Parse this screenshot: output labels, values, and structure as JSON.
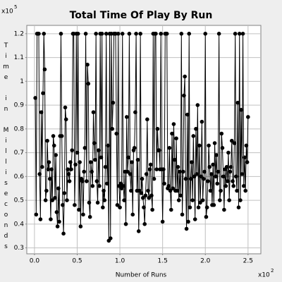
{
  "chart_data": {
    "type": "line",
    "title": "Total Time Of Play By Run",
    "xlabel": "Number of Runs",
    "ylabel": "Time in Milliseconds",
    "x_multiplier": "x10",
    "x_exponent": "2",
    "y_multiplier": "x10",
    "y_exponent": "5",
    "xlim": [
      -9,
      265
    ],
    "xticks": [
      {
        "value": 0,
        "label": "0.0"
      },
      {
        "value": 50,
        "label": "0.5"
      },
      {
        "value": 100,
        "label": "1.0"
      },
      {
        "value": 150,
        "label": "1.5"
      },
      {
        "value": 200,
        "label": "2.0"
      },
      {
        "value": 250,
        "label": "2.5"
      }
    ],
    "ylim": [
      0.275,
      1.235
    ],
    "yticks": [
      0.3,
      0.4,
      0.5,
      0.6,
      0.7,
      0.8,
      0.9,
      1.0,
      1.1,
      1.2
    ],
    "grid": true,
    "x": [
      1,
      2,
      3,
      4,
      5,
      6,
      7,
      8,
      9,
      10,
      11,
      12,
      13,
      14,
      15,
      16,
      17,
      18,
      19,
      20,
      21,
      22,
      23,
      24,
      25,
      26,
      27,
      28,
      29,
      30,
      31,
      32,
      33,
      34,
      35,
      36,
      37,
      38,
      39,
      40,
      41,
      42,
      43,
      44,
      45,
      46,
      47,
      48,
      49,
      50,
      51,
      52,
      53,
      54,
      55,
      56,
      57,
      58,
      59,
      60,
      61,
      62,
      63,
      64,
      65,
      66,
      67,
      68,
      69,
      70,
      71,
      72,
      73,
      74,
      75,
      76,
      77,
      78,
      79,
      80,
      81,
      82,
      83,
      84,
      85,
      86,
      87,
      88,
      89,
      90,
      91,
      92,
      93,
      94,
      95,
      96,
      97,
      98,
      99,
      100,
      101,
      102,
      103,
      104,
      105,
      106,
      107,
      108,
      109,
      110,
      111,
      112,
      113,
      114,
      115,
      116,
      117,
      118,
      119,
      120,
      121,
      122,
      123,
      124,
      125,
      126,
      127,
      128,
      129,
      130,
      131,
      132,
      133,
      134,
      135,
      136,
      137,
      138,
      139,
      140,
      141,
      142,
      143,
      144,
      145,
      146,
      147,
      148,
      149,
      150,
      151,
      152,
      153,
      154,
      155,
      156,
      157,
      158,
      159,
      160,
      161,
      162,
      163,
      164,
      165,
      166,
      167,
      168,
      169,
      170,
      171,
      172,
      173,
      174,
      175,
      176,
      177,
      178,
      179,
      180,
      181,
      182,
      183,
      184,
      185,
      186,
      187,
      188,
      189,
      190,
      191,
      192,
      193,
      194,
      195,
      196,
      197,
      198,
      199,
      200,
      201,
      202,
      203,
      204,
      205,
      206,
      207,
      208,
      209,
      210,
      211,
      212,
      213,
      214,
      215,
      216,
      217,
      218,
      219,
      220,
      221,
      222,
      223,
      224,
      225,
      226,
      227,
      228,
      229,
      230,
      231,
      232,
      233,
      234,
      235,
      236,
      237,
      238,
      239,
      240,
      241,
      242,
      243,
      244,
      245,
      246,
      247,
      248,
      249,
      250
    ],
    "series": [
      {
        "color": "#000000",
        "values": [
          0.93,
          0.44,
          1.2,
          1.2,
          1.2,
          0.61,
          0.42,
          0.87,
          0.64,
          0.95,
          1.2,
          1.05,
          0.5,
          0.54,
          0.75,
          0.63,
          0.66,
          0.59,
          0.42,
          0.63,
          0.5,
          0.77,
          0.73,
          0.51,
          0.69,
          0.45,
          0.39,
          0.55,
          0.41,
          0.77,
          1.2,
          0.77,
          0.48,
          0.36,
          0.53,
          0.89,
          0.84,
          0.5,
          0.63,
          0.61,
          0.58,
          0.66,
          0.63,
          0.71,
          1.2,
          1.2,
          0.48,
          0.65,
          1.2,
          0.7,
          1.2,
          0.46,
          0.66,
          0.39,
          0.59,
          0.58,
          0.44,
          0.62,
          0.72,
          1.2,
          0.58,
          1.07,
          0.99,
          0.49,
          0.43,
          0.66,
          0.62,
          0.56,
          0.87,
          0.74,
          0.67,
          1.2,
          0.58,
          0.49,
          0.71,
          0.56,
          1.2,
          0.68,
          1.2,
          0.47,
          0.54,
          0.5,
          0.64,
          1.2,
          0.57,
          0.73,
          0.33,
          1.2,
          0.34,
          1.2,
          0.8,
          0.91,
          1.2,
          1.2,
          1.2,
          0.78,
          0.48,
          1.2,
          0.56,
          0.47,
          0.57,
          0.55,
          1.2,
          0.56,
          0.5,
          0.62,
          0.4,
          0.85,
          0.62,
          0.68,
          1.2,
          0.61,
          0.54,
          0.66,
          0.44,
          0.71,
          0.72,
          0.87,
          1.2,
          0.54,
          0.67,
          0.37,
          0.54,
          1.2,
          0.53,
          0.59,
          0.51,
          0.47,
          0.4,
          0.52,
          0.61,
          0.84,
          0.54,
          0.51,
          0.63,
          0.65,
          0.52,
          0.46,
          1.2,
          0.59,
          1.2,
          1.2,
          0.63,
          0.8,
          0.71,
          0.71,
          0.63,
          1.2,
          0.63,
          0.41,
          0.63,
          0.57,
          1.2,
          1.2,
          1.2,
          0.55,
          0.56,
          0.72,
          0.54,
          0.46,
          0.78,
          0.55,
          0.82,
          0.67,
          0.54,
          0.76,
          0.54,
          0.64,
          0.5,
          0.62,
          0.52,
          1.2,
          0.44,
          0.62,
          0.94,
          1.02,
          0.59,
          0.38,
          0.86,
          0.41,
          1.2,
          0.47,
          0.59,
          0.66,
          0.5,
          0.77,
          0.6,
          0.42,
          0.8,
          0.61,
          0.9,
          0.47,
          0.73,
          0.49,
          0.6,
          0.83,
          0.5,
          0.59,
          0.62,
          1.2,
          0.43,
          0.47,
          0.58,
          0.73,
          0.64,
          0.54,
          0.61,
          0.48,
          0.65,
          0.48,
          0.74,
          0.6,
          0.69,
          0.57,
          0.62,
          1.2,
          0.5,
          0.54,
          0.78,
          0.72,
          0.6,
          0.46,
          0.63,
          0.56,
          0.64,
          0.58,
          0.7,
          0.5,
          0.62,
          0.64,
          0.75,
          0.58,
          0.56,
          0.74,
          1.2,
          0.6,
          0.54,
          0.91,
          0.47,
          1.2,
          0.5,
          0.88,
          0.61,
          1.2,
          0.56,
          0.68,
          0.54,
          0.73,
          0.66,
          0.85
        ]
      }
    ]
  }
}
